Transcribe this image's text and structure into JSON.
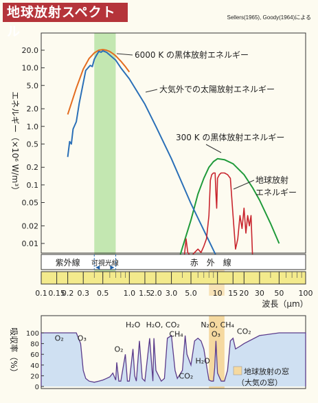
{
  "title": "地球放射スペクトル",
  "source": "Sellers(1965), Goody(1964)による",
  "colors": {
    "sun_curve": "#e36c1f",
    "atmosphere_curve": "#2a6fb7",
    "bb300_curve": "#1f9a3a",
    "earth_curve": "#c8242d",
    "visible_band": "#b8e3a6",
    "window_band": "#f5d9a0",
    "absorption_fill": "#cfe0f2",
    "bar_strip": "#f3ea8c"
  },
  "chart_data": [
    {
      "type": "line",
      "xscale": "log",
      "yscale": "log",
      "xlim": [
        0.1,
        100
      ],
      "ylim": [
        0.005,
        30
      ],
      "ylabel": "エネルギー（×10⁶ W/m³）",
      "xlabel": "波長（μm）",
      "yticks": [
        "20.0",
        "10.0",
        "5.0",
        "2.0",
        "1.0",
        "0.5",
        "0.2",
        "0.1",
        "0.05",
        "0.02",
        "0.01"
      ],
      "xticks": [
        "0.1",
        "0.15",
        "0.2",
        "0.3",
        "0.5",
        "1.0",
        "1.5",
        "2.0",
        "3.0",
        "5.0",
        "10",
        "15",
        "20",
        "30",
        "50",
        "100"
      ],
      "visible_band": [
        0.4,
        0.7
      ],
      "regions": [
        {
          "label": "紫外線",
          "from": 0.1,
          "to": 0.4
        },
        {
          "label": "可視光線",
          "from": 0.4,
          "to": 0.7
        },
        {
          "label": "赤　外　線",
          "from": 0.7,
          "to": 100
        }
      ],
      "series": [
        {
          "name": "6000 K の黒体放射エネルギー",
          "x": [
            0.2,
            0.25,
            0.3,
            0.35,
            0.4,
            0.45,
            0.5,
            0.55,
            0.6,
            0.65,
            0.7,
            0.8,
            0.9,
            1.0
          ],
          "y": [
            1.6,
            4.5,
            9.5,
            14.5,
            18,
            20,
            20.5,
            20,
            19,
            17.5,
            16,
            13,
            10.5,
            8.5
          ]
        },
        {
          "name": "大気外での太陽放射エネルギー",
          "x": [
            0.2,
            0.21,
            0.22,
            0.23,
            0.25,
            0.27,
            0.3,
            0.32,
            0.34,
            0.36,
            0.38,
            0.4,
            0.42,
            0.45,
            0.48,
            0.5,
            0.55,
            0.6,
            0.7,
            0.8,
            1.0,
            1.5,
            2.0,
            3.0,
            5.0,
            10
          ],
          "y": [
            0.3,
            0.55,
            0.5,
            0.9,
            1.2,
            2.5,
            5.5,
            9,
            10,
            11,
            10.5,
            14,
            16,
            19,
            18.5,
            19.5,
            18.5,
            16.5,
            13.5,
            10,
            6.5,
            2.4,
            1.0,
            0.28,
            0.048,
            0.0055
          ]
        },
        {
          "name": "300 K の黒体放射エネルギー",
          "x": [
            3.6,
            4,
            5,
            6,
            7,
            8,
            9,
            10,
            12,
            15,
            20,
            25,
            30,
            40,
            50
          ],
          "y": [
            0.005,
            0.0085,
            0.025,
            0.07,
            0.13,
            0.2,
            0.25,
            0.28,
            0.27,
            0.23,
            0.15,
            0.09,
            0.055,
            0.022,
            0.01
          ]
        },
        {
          "name": "地球放射 エネルギー",
          "x": [
            3.8,
            4.2,
            4.4,
            4.6,
            5,
            5.5,
            6,
            6.5,
            7,
            7.5,
            8,
            8.3,
            8.6,
            9,
            9.4,
            9.6,
            9.8,
            10,
            10.5,
            11,
            12,
            13,
            14,
            15,
            16,
            17,
            18,
            19,
            20,
            21,
            22,
            23,
            24,
            25,
            26
          ],
          "y": [
            0.005,
            0.006,
            0.012,
            0.007,
            0.006,
            0.007,
            0.008,
            0.007,
            0.009,
            0.012,
            0.03,
            0.12,
            0.15,
            0.16,
            0.16,
            0.07,
            0.04,
            0.13,
            0.15,
            0.16,
            0.16,
            0.15,
            0.13,
            0.03,
            0.008,
            0.012,
            0.03,
            0.018,
            0.04,
            0.015,
            0.03,
            0.02,
            0.03,
            0.006,
            0.005
          ]
        }
      ]
    },
    {
      "type": "area",
      "xscale": "log",
      "xlim": [
        0.1,
        100
      ],
      "ylim": [
        0,
        100
      ],
      "ylabel": "吸収率（%）",
      "yticks": [
        "100",
        "80",
        "60",
        "40",
        "20",
        "0"
      ],
      "window_band": [
        8,
        12
      ],
      "series": [
        {
          "name": "",
          "x": [
            0.1,
            0.25,
            0.28,
            0.3,
            0.32,
            0.35,
            0.4,
            0.45,
            0.5,
            0.55,
            0.6,
            0.65,
            0.7,
            0.72,
            0.76,
            0.8,
            0.9,
            0.95,
            1.0,
            1.1,
            1.15,
            1.2,
            1.3,
            1.4,
            1.5,
            1.7,
            1.85,
            1.9,
            2.0,
            2.3,
            2.5,
            2.7,
            3.0,
            3.3,
            3.5,
            4.0,
            4.3,
            4.5,
            5.0,
            5.5,
            6.0,
            6.5,
            7.0,
            7.5,
            8.0,
            8.5,
            9.0,
            9.3,
            9.6,
            10,
            11,
            12,
            13,
            14,
            15,
            16,
            18,
            20,
            30,
            50,
            100
          ],
          "y": [
            100,
            100,
            80,
            30,
            15,
            10,
            8,
            10,
            12,
            15,
            18,
            25,
            12,
            45,
            10,
            10,
            60,
            10,
            10,
            70,
            20,
            10,
            85,
            15,
            10,
            90,
            10,
            90,
            30,
            10,
            15,
            90,
            95,
            30,
            15,
            30,
            95,
            60,
            40,
            85,
            90,
            85,
            70,
            40,
            12,
            10,
            10,
            35,
            85,
            25,
            10,
            10,
            30,
            85,
            90,
            70,
            75,
            80,
            95,
            100,
            100
          ]
        }
      ],
      "annotations": [
        {
          "label": "O₂",
          "x": 0.16,
          "y": 85
        },
        {
          "label": "O₃",
          "x": 0.29,
          "y": 85
        },
        {
          "label": "O₂",
          "x": 0.76,
          "y": 65
        },
        {
          "label": "H₂O",
          "x": 1.1,
          "y": 110
        },
        {
          "label": "H₂O, CO₂",
          "x": 2.4,
          "y": 110
        },
        {
          "label": "CH₄",
          "x": 3.4,
          "y": 93
        },
        {
          "label": "CO₂",
          "x": 4.4,
          "y": 15
        },
        {
          "label": "H₂O",
          "x": 6.8,
          "y": 43
        },
        {
          "label": "N₂O, CH₄",
          "x": 10,
          "y": 110
        },
        {
          "label": "O₃",
          "x": 9.6,
          "y": 93
        },
        {
          "label": "CO₂",
          "x": 20,
          "y": 98
        }
      ],
      "legend": [
        "地球放射の窓",
        "（大気の窓）"
      ]
    }
  ]
}
